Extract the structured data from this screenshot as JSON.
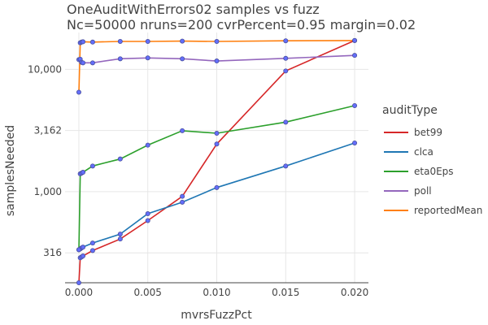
{
  "chart_data": {
    "type": "line",
    "title": "OneAuditWithErrors02 samples vs fuzz",
    "subtitle": "Nc=50000 nruns=200 cvrPercent=0.95 margin=0.02",
    "xlabel": "mvrsFuzzPct",
    "ylabel": "samplesNeeded",
    "y_scale": "log",
    "xlim": [
      -0.001,
      0.021
    ],
    "ylim": [
      180,
      20000
    ],
    "x_ticks": [
      0,
      0.005,
      0.01,
      0.015,
      0.02
    ],
    "x_tick_labels": [
      "0.000",
      "0.005",
      "0.010",
      "0.015",
      "0.020"
    ],
    "y_ticks": [
      316,
      1000,
      3162,
      10000
    ],
    "y_tick_labels": [
      "316",
      "1,000",
      "3,162",
      "10,000"
    ],
    "x": [
      0,
      0.0001,
      0.0002,
      0.0003,
      0.001,
      0.003,
      0.005,
      0.0075,
      0.01,
      0.015,
      0.02
    ],
    "legend_title": "auditType",
    "legend_position": "right",
    "grid": true,
    "marker_color": "#636efa",
    "series": [
      {
        "name": "bet99",
        "color": "#d62728",
        "values": [
          180,
          288,
          293,
          298,
          330,
          410,
          580,
          915,
          2450,
          9700,
          17200
        ]
      },
      {
        "name": "clca",
        "color": "#1f77b4",
        "values": [
          335,
          340,
          347,
          352,
          380,
          450,
          660,
          820,
          1080,
          1620,
          2500
        ]
      },
      {
        "name": "eta0Eps",
        "color": "#2ca02c",
        "values": [
          335,
          1400,
          1420,
          1440,
          1620,
          1850,
          2400,
          3150,
          3000,
          3700,
          5050
        ]
      },
      {
        "name": "poll",
        "color": "#9467bd",
        "values": [
          12000,
          12100,
          11400,
          11300,
          11300,
          12200,
          12400,
          12200,
          11700,
          12300,
          13000
        ]
      },
      {
        "name": "reportedMean",
        "color": "#ff7f0e",
        "values": [
          6500,
          16500,
          16700,
          16800,
          16700,
          16900,
          16900,
          17000,
          16900,
          17100,
          17200
        ]
      }
    ]
  }
}
